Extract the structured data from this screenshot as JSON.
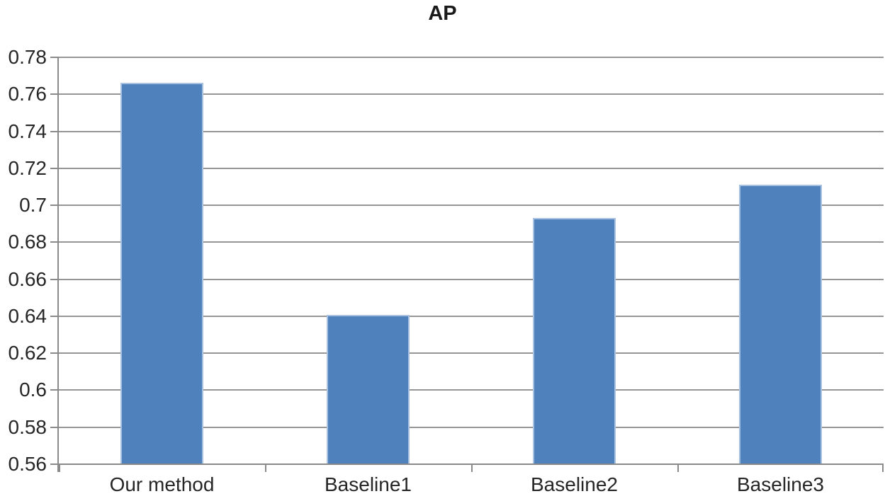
{
  "chart_data": {
    "type": "bar",
    "title": "AP",
    "categories": [
      "Our method",
      "Baseline1",
      "Baseline2",
      "Baseline3"
    ],
    "values": [
      0.766,
      0.641,
      0.693,
      0.711
    ],
    "ylim": [
      0.56,
      0.78
    ],
    "ytick_step": 0.02,
    "ytick_labels": [
      "0.78",
      "0.76",
      "0.74",
      "0.72",
      "0.7",
      "0.68",
      "0.66",
      "0.64",
      "0.62",
      "0.6",
      "0.58",
      "0.56"
    ],
    "xlabel": "",
    "ylabel": "",
    "grid": true,
    "legend": false,
    "bar_width_fraction": 0.402,
    "colors": {
      "bar_fill": "#4F81BD",
      "bar_edge": "#A9C1E0",
      "gridline": "#969696",
      "axis": "#8A8A8A",
      "title_text": "#1a1a1a",
      "label_text": "#262626",
      "background": "#ffffff"
    }
  }
}
